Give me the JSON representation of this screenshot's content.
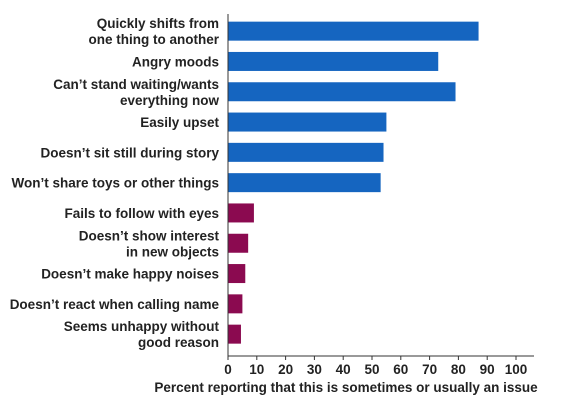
{
  "chart_data": {
    "type": "bar",
    "orientation": "horizontal",
    "categories": [
      [
        "Quickly shifts from",
        "one thing to another"
      ],
      [
        "Angry moods"
      ],
      [
        "Can’t stand waiting/wants",
        "everything now"
      ],
      [
        "Easily upset"
      ],
      [
        "Doesn’t sit still during story"
      ],
      [
        "Won’t share toys or other things"
      ],
      [
        "Fails to follow with eyes"
      ],
      [
        "Doesn’t show interest",
        "in new objects"
      ],
      [
        "Doesn’t make happy noises"
      ],
      [
        "Doesn’t react when calling name"
      ],
      [
        "Seems unhappy without",
        "good reason"
      ]
    ],
    "values": [
      87,
      73,
      79,
      55,
      54,
      53,
      9,
      7,
      6,
      5,
      4.5
    ],
    "bar_colors": [
      "#1565c0",
      "#1565c0",
      "#1565c0",
      "#1565c0",
      "#1565c0",
      "#1565c0",
      "#8b0a50",
      "#8b0a50",
      "#8b0a50",
      "#8b0a50",
      "#8b0a50"
    ],
    "xlabel": "Percent reporting that this is sometimes or usually an issue",
    "xlim": [
      0,
      100
    ],
    "xticks": [
      0,
      10,
      20,
      30,
      40,
      50,
      60,
      70,
      80,
      90,
      100
    ],
    "grid": false,
    "legend": "none"
  }
}
